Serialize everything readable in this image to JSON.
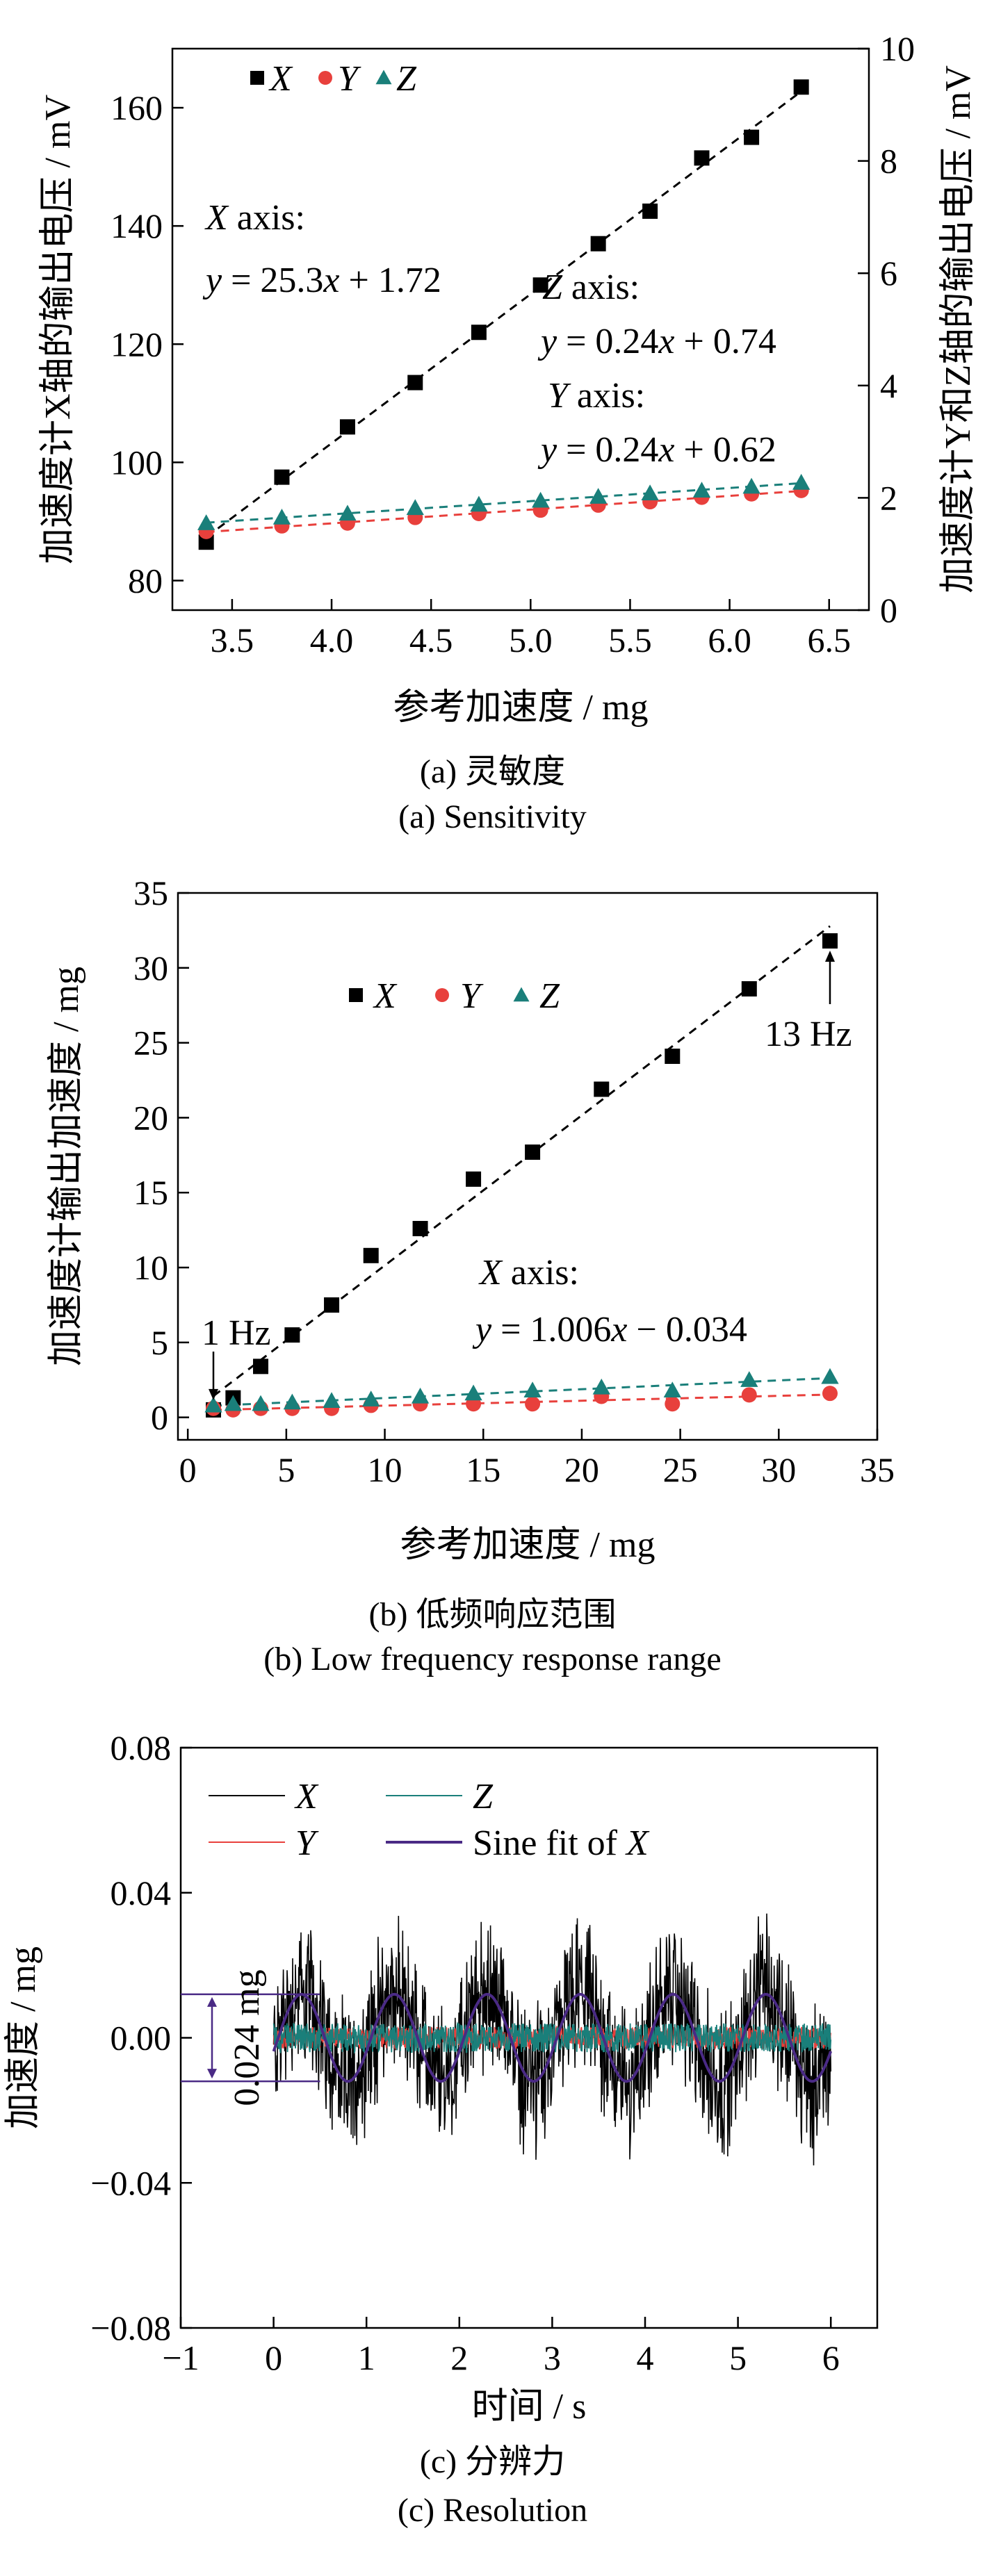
{
  "chart_data": [
    {
      "id": "a",
      "type": "scatter",
      "title": "(a) 灵敏度",
      "subtitle": "(a) Sensitivity",
      "xlabel": "参考加速度 / mg",
      "ylabel_left": "加速度计X轴的输出电压 / mV",
      "ylabel_right": "加速度计Y和Z轴的输出电压 / mV",
      "xlim": [
        3.2,
        6.7
      ],
      "ylim_left": [
        75,
        170
      ],
      "ylim_right": [
        0,
        10
      ],
      "xticks": [
        "3.5",
        "4.0",
        "4.5",
        "5.0",
        "5.5",
        "6.0",
        "6.5"
      ],
      "yticks_left": [
        "80",
        "100",
        "120",
        "140",
        "160"
      ],
      "yticks_right": [
        "0",
        "2",
        "4",
        "6",
        "8",
        "10"
      ],
      "legend": [
        "X",
        "Y",
        "Z"
      ],
      "colors": {
        "X": "#000000",
        "Y": "#e8403c",
        "Z": "#1a7f7a"
      },
      "series": [
        {
          "name": "X",
          "axis": "left",
          "marker": "square",
          "x": [
            3.37,
            3.75,
            4.08,
            4.42,
            4.74,
            5.05,
            5.34,
            5.6,
            5.86,
            6.11,
            6.36
          ],
          "y": [
            86.5,
            97.5,
            106,
            113.5,
            122,
            130,
            137,
            142.5,
            151.5,
            155,
            163.5
          ],
          "fit": "y = 25.3x + 1.72"
        },
        {
          "name": "Y",
          "axis": "right",
          "marker": "circle",
          "x": [
            3.37,
            3.75,
            4.08,
            4.42,
            4.74,
            5.05,
            5.34,
            5.6,
            5.86,
            6.11,
            6.36
          ],
          "y": [
            1.4,
            1.5,
            1.55,
            1.65,
            1.72,
            1.78,
            1.87,
            1.93,
            2.01,
            2.07,
            2.13
          ],
          "fit": "y = 0.24x + 0.62"
        },
        {
          "name": "Z",
          "axis": "right",
          "marker": "triangle",
          "x": [
            3.37,
            3.75,
            4.08,
            4.42,
            4.74,
            5.05,
            5.34,
            5.6,
            5.86,
            6.11,
            6.36
          ],
          "y": [
            1.55,
            1.65,
            1.72,
            1.82,
            1.88,
            1.95,
            2.02,
            2.08,
            2.13,
            2.2,
            2.27
          ],
          "fit": "y = 0.24x + 0.74"
        }
      ],
      "annotations": {
        "x_head": "X axis:",
        "x_eq": "y = 25.3x + 1.72",
        "z_head": "Z axis:",
        "z_eq": "y = 0.24x + 0.74",
        "y_head": "Y axis:",
        "y_eq": "y = 0.24x + 0.62"
      }
    },
    {
      "id": "b",
      "type": "scatter",
      "title": "(b) 低频响应范围",
      "subtitle": "(b) Low frequency response range",
      "xlabel": "参考加速度 / mg",
      "ylabel": "加速度计输出加速度 / mg",
      "xlim": [
        -0.5,
        35
      ],
      "ylim": [
        -1.5,
        35
      ],
      "xticks": [
        "0",
        "5",
        "10",
        "15",
        "20",
        "25",
        "30",
        "35"
      ],
      "yticks": [
        "0",
        "5",
        "10",
        "15",
        "20",
        "25",
        "30",
        "35"
      ],
      "legend": [
        "X",
        "Y",
        "Z"
      ],
      "colors": {
        "X": "#000000",
        "Y": "#e8403c",
        "Z": "#1a7f7a"
      },
      "series": [
        {
          "name": "X",
          "marker": "square",
          "x": [
            1.3,
            2.3,
            3.7,
            5.3,
            7.3,
            9.3,
            11.8,
            14.5,
            17.5,
            21.0,
            24.6,
            28.5,
            32.6
          ],
          "y": [
            0.5,
            1.3,
            3.4,
            5.5,
            7.5,
            10.8,
            12.6,
            15.9,
            17.7,
            21.9,
            24.1,
            28.6,
            31.8
          ],
          "fit": "y = 1.006x − 0.034"
        },
        {
          "name": "Y",
          "marker": "circle",
          "x": [
            1.3,
            2.3,
            3.7,
            5.3,
            7.3,
            9.3,
            11.8,
            14.5,
            17.5,
            21.0,
            24.6,
            28.5,
            32.6
          ],
          "y": [
            0.6,
            0.5,
            0.6,
            0.6,
            0.6,
            0.8,
            0.9,
            0.9,
            0.9,
            1.4,
            0.9,
            1.5,
            1.6
          ]
        },
        {
          "name": "Z",
          "marker": "triangle",
          "x": [
            1.3,
            2.3,
            3.7,
            5.3,
            7.3,
            9.3,
            11.8,
            14.5,
            17.5,
            21.0,
            24.6,
            28.5,
            32.6
          ],
          "y": [
            0.8,
            0.9,
            0.9,
            1.0,
            1.1,
            1.2,
            1.4,
            1.6,
            1.8,
            2.0,
            1.8,
            2.5,
            2.7
          ]
        }
      ],
      "annotations": {
        "low": "1 Hz",
        "high": "13 Hz",
        "x_head": "X axis:",
        "x_eq": "y = 1.006x − 0.034"
      }
    },
    {
      "id": "c",
      "type": "line",
      "title": "(c) 分辨力",
      "subtitle": "(c) Resolution",
      "xlabel": "时间 / s",
      "ylabel": "加速度 / mg",
      "xlim": [
        -1,
        6.5
      ],
      "ylim": [
        -0.08,
        0.08
      ],
      "xticks": [
        "−1",
        "0",
        "1",
        "2",
        "3",
        "4",
        "5",
        "6"
      ],
      "yticks": [
        "−0.08",
        "−0.04",
        "0.00",
        "0.04",
        "0.08"
      ],
      "legend": [
        "X",
        "Z",
        "Y",
        "Sine fit of X"
      ],
      "colors": {
        "X": "#000000",
        "Y": "#e8403c",
        "Z": "#1a7f7a",
        "Sine fit of X": "#4a2a85"
      },
      "series": [
        {
          "name": "X",
          "t_range": [
            0,
            6
          ],
          "noise_amplitude": 0.02
        },
        {
          "name": "Y",
          "t_range": [
            0,
            6
          ],
          "noise_amplitude": 0.003
        },
        {
          "name": "Z",
          "t_range": [
            0,
            6
          ],
          "noise_amplitude": 0.004
        },
        {
          "name": "Sine fit of X",
          "t_range": [
            0,
            6
          ],
          "amplitude": 0.012,
          "period": 1.0
        }
      ],
      "annotations": {
        "span": "0.024 mg",
        "upper": 0.012,
        "lower": -0.012
      }
    }
  ]
}
